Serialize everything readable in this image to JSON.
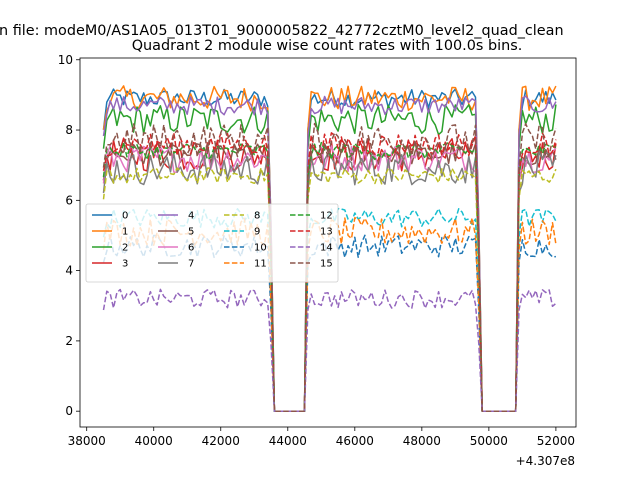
{
  "figure": {
    "suptitle": "n file: modeM0/AS1A05_013T01_9000005822_42772cztM0_level2_quad_clean",
    "axes_title": "Quadrant 2 module wise count rates with 100.0s bins.",
    "offset_label": "+4.307e8"
  },
  "chart_data": {
    "type": "line",
    "title": "Quadrant 2 module wise count rates with 100.0s bins.",
    "xlabel": "",
    "ylabel": "",
    "x_offset": 430700000,
    "xlim": [
      37800,
      52600
    ],
    "ylim": [
      -0.45,
      10.05
    ],
    "x_ticks": [
      38000,
      40000,
      42000,
      44000,
      46000,
      48000,
      50000,
      52000
    ],
    "x_tick_labels": [
      "38000",
      "40000",
      "42000",
      "44000",
      "46000",
      "48000",
      "50000",
      "52000"
    ],
    "y_ticks": [
      0,
      2,
      4,
      6,
      8,
      10
    ],
    "y_tick_labels": [
      "0",
      "2",
      "4",
      "6",
      "8",
      "10"
    ],
    "grid": false,
    "legend_position": "center-left",
    "legend_columns": 4,
    "bin_width": 100,
    "segments": [
      [
        38500,
        43400
      ],
      [
        44600,
        49600
      ],
      [
        50900,
        52000
      ]
    ],
    "gaps": [
      [
        43600,
        44500
      ],
      [
        49800,
        50800
      ]
    ],
    "series": [
      {
        "name": "0",
        "color": "#1f77b4",
        "style": "solid",
        "level": 8.9
      },
      {
        "name": "1",
        "color": "#ff7f0e",
        "style": "solid",
        "level": 8.9
      },
      {
        "name": "2",
        "color": "#2ca02c",
        "style": "solid",
        "level": 8.3
      },
      {
        "name": "3",
        "color": "#d62728",
        "style": "solid",
        "level": 7.3
      },
      {
        "name": "4",
        "color": "#9467bd",
        "style": "solid",
        "level": 8.7
      },
      {
        "name": "5",
        "color": "#8c564b",
        "style": "solid",
        "level": 7.3
      },
      {
        "name": "6",
        "color": "#e377c2",
        "style": "solid",
        "level": 7.2
      },
      {
        "name": "7",
        "color": "#7f7f7f",
        "style": "solid",
        "level": 6.9
      },
      {
        "name": "8",
        "color": "#bcbd22",
        "style": "dashed",
        "level": 6.7
      },
      {
        "name": "9",
        "color": "#17becf",
        "style": "dashed",
        "level": 5.5
      },
      {
        "name": "10",
        "color": "#1f77b4",
        "style": "dashed",
        "level": 4.7
      },
      {
        "name": "11",
        "color": "#ff7f0e",
        "style": "dashed",
        "level": 5.1
      },
      {
        "name": "12",
        "color": "#2ca02c",
        "style": "dashed",
        "level": 7.4
      },
      {
        "name": "13",
        "color": "#d62728",
        "style": "dashed",
        "level": 7.6
      },
      {
        "name": "14",
        "color": "#9467bd",
        "style": "dashed",
        "level": 3.2
      },
      {
        "name": "15",
        "color": "#8c564b",
        "style": "dashed",
        "level": 7.7
      }
    ]
  }
}
